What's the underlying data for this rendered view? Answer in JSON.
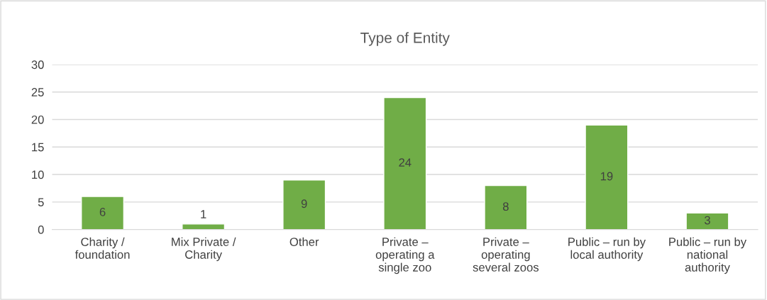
{
  "chart_data": {
    "type": "bar",
    "title": "Type of Entity",
    "categories": [
      "Charity / foundation",
      "Mix Private / Charity",
      "Other",
      "Private – operating a single zoo",
      "Private – operating several zoos",
      "Public – run by local authority",
      "Public – run by national authority"
    ],
    "values": [
      6,
      1,
      9,
      24,
      8,
      19,
      3
    ],
    "color": "#70ad47",
    "ylim": [
      0,
      30
    ],
    "yticks": [
      0,
      5,
      10,
      15,
      20,
      25,
      30
    ],
    "grid": "y",
    "data_labels": true
  }
}
